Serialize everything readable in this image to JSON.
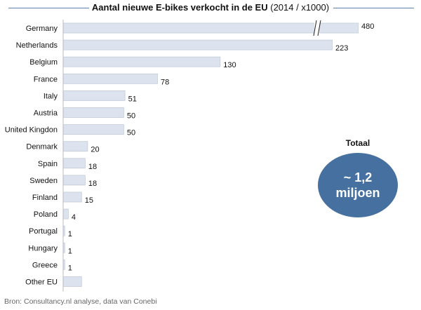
{
  "chart_data": {
    "type": "bar",
    "orientation": "horizontal",
    "title": "Aantal nieuwe E-bikes verkocht in de EU",
    "subtitle": "(2014 / x1000)",
    "categories": [
      "Germany",
      "Netherlands",
      "Belgium",
      "France",
      "Italy",
      "Austria",
      "United Kingdon",
      "Denmark",
      "Spain",
      "Sweden",
      "Finland",
      "Poland",
      "Portugal",
      "Hungary",
      "Greece",
      "Other EU"
    ],
    "values": [
      480,
      223,
      130,
      78,
      51,
      50,
      50,
      20,
      18,
      18,
      15,
      4,
      1,
      1,
      1,
      15
    ],
    "data_labels": [
      "480",
      "223",
      "130",
      "78",
      "51",
      "50",
      "50",
      "20",
      "18",
      "18",
      "15",
      "4",
      "1",
      "1",
      "1",
      ""
    ],
    "axis_break": "Germany",
    "bar_color": "#dde3ee",
    "bar_border": "#c4cbd8"
  },
  "callout": {
    "label": "Totaal",
    "value_line1": "~ 1,2",
    "value_line2": "miljoen",
    "color": "#46709f"
  },
  "source": "Bron: Consultancy.nl analyse, data van Conebi"
}
